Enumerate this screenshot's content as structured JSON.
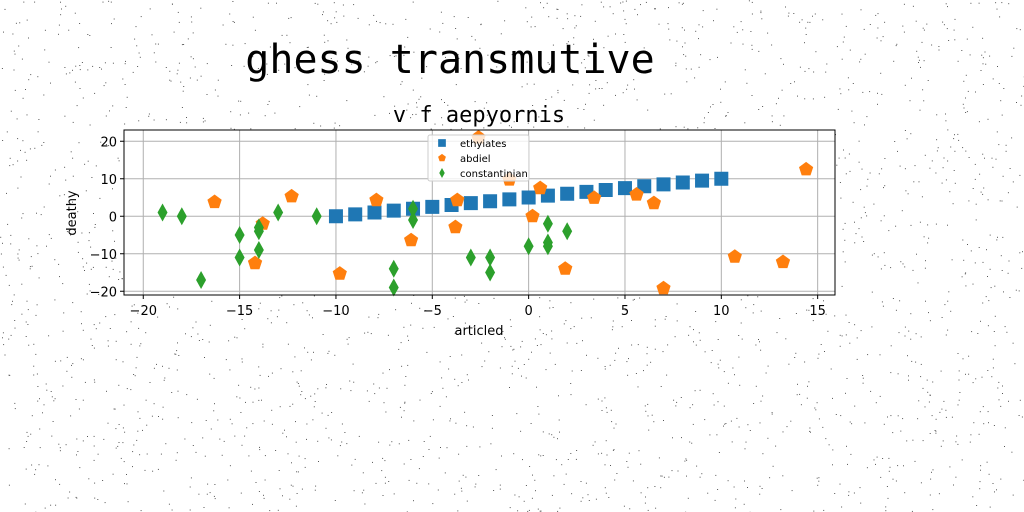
{
  "page": {
    "title": "ghess transmutive"
  },
  "chart_data": {
    "type": "scatter",
    "title": "v f aepyornis",
    "xlabel": "articled",
    "ylabel": "deathy",
    "xlim": [
      -21,
      15.9
    ],
    "ylim": [
      -21,
      23
    ],
    "xticks": [
      -20,
      -15,
      -10,
      -5,
      0,
      5,
      10,
      15
    ],
    "yticks": [
      -20,
      -10,
      0,
      10,
      20
    ],
    "xtick_labels": [
      "−20",
      "−15",
      "−10",
      "−5",
      "0",
      "5",
      "10",
      "15"
    ],
    "ytick_labels": [
      "−20",
      "−10",
      "0",
      "10",
      "20"
    ],
    "grid": true,
    "legend_position": "top-center",
    "series": [
      {
        "name": "ethyiates",
        "marker": "square",
        "color": "#1f77b4",
        "x": [
          -10.0,
          -9.0,
          -8.0,
          -7.0,
          -6.0,
          -5.0,
          -4.0,
          -3.0,
          -2.0,
          -1.0,
          0.0,
          1.0,
          2.0,
          3.0,
          4.0,
          5.0,
          6.0,
          7.0,
          8.0,
          9.0,
          10.0
        ],
        "y": [
          0.0,
          0.5,
          1.0,
          1.5,
          2.0,
          2.5,
          3.0,
          3.5,
          4.0,
          4.5,
          5.0,
          5.5,
          6.0,
          6.5,
          7.0,
          7.5,
          8.0,
          8.5,
          9.0,
          9.5,
          10.0
        ]
      },
      {
        "name": "abdiel",
        "marker": "pentagon",
        "color": "#ff7f0e",
        "x": [
          -16.3,
          -13.8,
          -14.2,
          -12.3,
          -9.8,
          -7.9,
          -6.1,
          -3.7,
          -3.8,
          -2.6,
          -1.0,
          0.2,
          0.6,
          1.9,
          3.4,
          5.6,
          6.5,
          7.0,
          10.7,
          13.2,
          14.4
        ],
        "y": [
          3.8,
          -2.0,
          -12.5,
          5.3,
          -15.3,
          4.3,
          -6.4,
          4.3,
          -2.9,
          21.0,
          9.8,
          0.0,
          7.5,
          -14.0,
          4.9,
          5.8,
          3.5,
          -19.2,
          -10.8,
          -12.2,
          12.5
        ]
      },
      {
        "name": "constantinian",
        "marker": "thin_diamond",
        "color": "#2ca02c",
        "x": [
          -19.0,
          -18.0,
          -17.0,
          -15.0,
          -15.0,
          -14.0,
          -14.0,
          -14.0,
          -13.0,
          -11.0,
          -7.0,
          -7.0,
          -6.0,
          -6.0,
          -3.0,
          -2.0,
          -2.0,
          0.0,
          1.0,
          1.0,
          1.0,
          2.0
        ],
        "y": [
          1.0,
          0.0,
          -17.0,
          -5.0,
          -11.0,
          -4.0,
          -9.0,
          -3.0,
          1.0,
          0.0,
          -14.0,
          -19.0,
          2.0,
          -1.0,
          -11.0,
          -11.0,
          -15.0,
          -8.0,
          -2.0,
          -7.0,
          -8.0,
          -4.0
        ]
      }
    ]
  }
}
